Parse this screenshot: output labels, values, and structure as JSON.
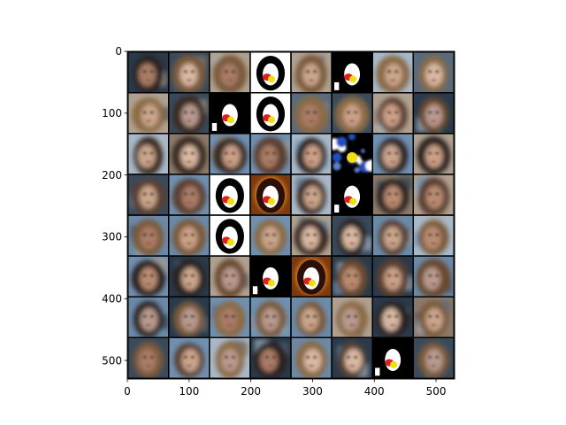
{
  "chart_data": {
    "type": "heatmap",
    "title": "",
    "xlabel": "",
    "ylabel": "",
    "xlim": [
      0,
      530
    ],
    "ylim": [
      530,
      0
    ],
    "xticks": [
      0,
      100,
      200,
      300,
      400,
      500
    ],
    "yticks": [
      0,
      100,
      200,
      300,
      400,
      500
    ],
    "xtick_labels": [
      "0",
      "100",
      "200",
      "300",
      "400",
      "500"
    ],
    "ytick_labels": [
      "0",
      "100",
      "200",
      "300",
      "400",
      "500"
    ],
    "grid": false,
    "image_grid": {
      "rows": 8,
      "cols": 8,
      "tile": 64,
      "padding": 2
    },
    "tile_kinds": [
      [
        "face",
        "face",
        "face",
        "mask",
        "face",
        "mask-dark",
        "face",
        "face"
      ],
      [
        "face",
        "face",
        "mask-dark",
        "mask",
        "face",
        "face",
        "face",
        "face"
      ],
      [
        "face",
        "face",
        "face",
        "face",
        "face",
        "splash",
        "face",
        "face"
      ],
      [
        "face",
        "face",
        "mask",
        "mask-warm",
        "face",
        "mask-dark",
        "face",
        "face"
      ],
      [
        "face",
        "face",
        "mask",
        "face",
        "face",
        "face",
        "face",
        "face"
      ],
      [
        "face",
        "face",
        "face",
        "mask-dark",
        "mask-warm",
        "face",
        "face",
        "face"
      ],
      [
        "face",
        "face",
        "face",
        "face",
        "face",
        "face",
        "face",
        "face"
      ],
      [
        "face",
        "face",
        "face",
        "face",
        "face",
        "face",
        "mask-dark",
        "face"
      ]
    ],
    "palettes": {
      "skin": [
        "#c9a58c",
        "#b98c72",
        "#d8b8a2",
        "#a97c66",
        "#caa088",
        "#b79a8e"
      ],
      "hair": [
        "#5a4030",
        "#3a2a20",
        "#7a5a3a",
        "#8a6a44",
        "#2a2420",
        "#6a4a2e"
      ],
      "bg": [
        "#6a8aa8",
        "#3a4a5a",
        "#a8b8c8",
        "#8a7a6a",
        "#5a6a7a",
        "#2a3a4a",
        "#b0a090",
        "#7090b0"
      ],
      "mask": {
        "white": "#ffffff",
        "black": "#000000",
        "red": "#e02020",
        "yellow": "#f0e010"
      }
    }
  }
}
